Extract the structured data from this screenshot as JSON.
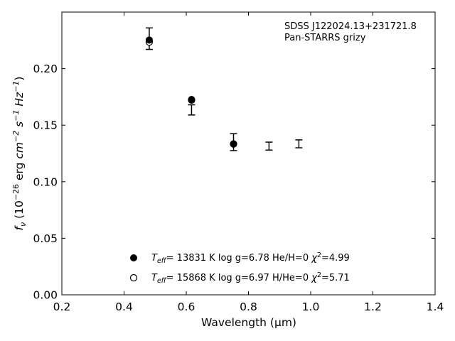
{
  "chart_data": {
    "type": "scatter",
    "xlabel": "Wavelength (μm)",
    "ylabel_parts": {
      "f": "f",
      "nu": "ν",
      "open": " (10",
      "exp1": "−26",
      "erg": " erg ",
      "cm": "cm",
      "exp2": "−2",
      "s": " s",
      "exp3": "−1",
      "hz": " Hz",
      "exp4": "−1",
      "close": ")"
    },
    "xlim": [
      0.2,
      1.4
    ],
    "ylim": [
      0.0,
      0.25
    ],
    "xticks": [
      "0.2",
      "0.4",
      "0.6",
      "0.8",
      "1.0",
      "1.2",
      "1.4"
    ],
    "yticks": [
      "0.00",
      "0.05",
      "0.10",
      "0.15",
      "0.20"
    ],
    "xtick_values": [
      0.2,
      0.4,
      0.6,
      0.8,
      1.0,
      1.2,
      1.4
    ],
    "ytick_values": [
      0.0,
      0.05,
      0.1,
      0.15,
      0.2
    ],
    "annotation": {
      "line1": "SDSS J122024.13+231721.8",
      "line2": "Pan-STARRS grizy"
    },
    "observed": {
      "x": [
        0.481,
        0.617,
        0.752,
        0.866,
        0.962
      ],
      "y": [
        0.2265,
        0.1635,
        0.135,
        0.1315,
        0.1335
      ],
      "yerr": [
        0.0095,
        0.0045,
        0.0075,
        0.0035,
        0.0035
      ]
    },
    "series": [
      {
        "marker": "filled-circle",
        "x": [
          0.481,
          0.617,
          0.752
        ],
        "y": [
          0.2253,
          0.1727,
          0.1335
        ],
        "label": {
          "teff": "T",
          "teff_sub": "eff",
          "rest": "= 13831 K  log g=6.78  He/H=0  ",
          "chi": "χ",
          "chi_sup": "2",
          "chi_val": "=4.99"
        }
      },
      {
        "marker": "open-circle",
        "x": [
          0.481,
          0.617,
          0.752
        ],
        "y": [
          0.2235,
          0.1722,
          0.1333
        ],
        "label": {
          "teff": "T",
          "teff_sub": "eff",
          "rest": "= 15868 K  log g=6.97  H/He=0  ",
          "chi": "χ",
          "chi_sup": "2",
          "chi_val": "=5.71"
        }
      }
    ]
  }
}
